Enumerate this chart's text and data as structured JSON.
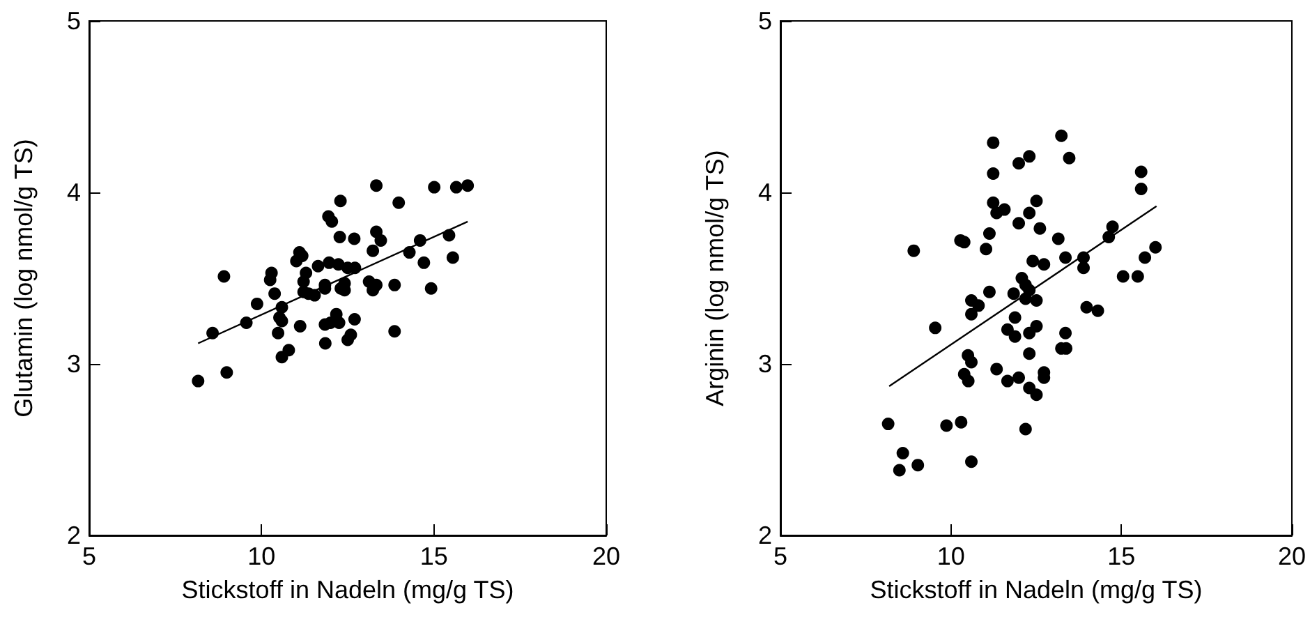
{
  "chart_data": [
    {
      "type": "scatter",
      "xlabel": "Stickstoff in Nadeln (mg/g TS)",
      "ylabel": "Glutamin (log nmol/g TS)",
      "xlim": [
        5,
        20
      ],
      "xticks": [
        5,
        10,
        15,
        20
      ],
      "ylim": [
        2,
        5
      ],
      "yticks": [
        2,
        3,
        4,
        5
      ],
      "grid": false,
      "marker": "circle",
      "series": [
        {
          "type": "scatter",
          "color": "#000000",
          "x": [
            8.16,
            8.99,
            8.58,
            8.91,
            9.56,
            9.87,
            10.29,
            10.25,
            10.38,
            10.59,
            10.52,
            10.59,
            10.48,
            10.79,
            10.59,
            11.01,
            11.1,
            11.18,
            11.12,
            11.29,
            11.22,
            11.22,
            11.36,
            11.54,
            11.64,
            11.84,
            11.84,
            11.96,
            11.94,
            12.04,
            12.29,
            12.27,
            12.69,
            12.23,
            12.5,
            12.71,
            12.41,
            12.3,
            12.41,
            11.84,
            12.0,
            12.17,
            12.25,
            12.7,
            11.85,
            12.5,
            12.59,
            13.33,
            13.33,
            13.46,
            13.23,
            13.12,
            13.33,
            13.23,
            13.86,
            13.86,
            13.98,
            14.29,
            14.6,
            14.71,
            14.92,
            15.01,
            15.44,
            15.55,
            15.65,
            15.98
          ],
          "values": [
            2.9,
            2.95,
            3.18,
            3.51,
            3.24,
            3.35,
            3.53,
            3.49,
            3.41,
            3.33,
            3.27,
            3.25,
            3.18,
            3.08,
            3.04,
            3.6,
            3.65,
            3.63,
            3.22,
            3.53,
            3.48,
            3.42,
            3.41,
            3.4,
            3.57,
            3.46,
            3.44,
            3.59,
            3.86,
            3.83,
            3.95,
            3.74,
            3.73,
            3.58,
            3.56,
            3.56,
            3.47,
            3.44,
            3.43,
            3.23,
            3.24,
            3.29,
            3.24,
            3.26,
            3.12,
            3.14,
            3.17,
            4.04,
            3.77,
            3.72,
            3.66,
            3.48,
            3.46,
            3.43,
            3.46,
            3.19,
            3.94,
            3.65,
            3.72,
            3.59,
            3.44,
            4.03,
            3.75,
            3.62,
            4.03,
            4.04
          ]
        },
        {
          "type": "line",
          "color": "#000000",
          "marker": "none",
          "x": [
            8.16,
            15.98
          ],
          "values": [
            3.12,
            3.83
          ]
        }
      ]
    },
    {
      "type": "scatter",
      "xlabel": "Stickstoff in Nadeln (mg/g TS)",
      "ylabel": "Arginin (log nmol/g TS)",
      "xlim": [
        5,
        20
      ],
      "xticks": [
        5,
        10,
        15,
        20
      ],
      "ylim": [
        2,
        5
      ],
      "yticks": [
        2,
        3,
        4,
        5
      ],
      "grid": false,
      "marker": "circle",
      "series": [
        {
          "type": "scatter",
          "color": "#000000",
          "x": [
            8.16,
            8.59,
            8.49,
            9.03,
            8.91,
            9.54,
            9.87,
            10.3,
            10.6,
            10.28,
            10.39,
            10.5,
            10.6,
            10.39,
            10.51,
            10.6,
            10.81,
            10.6,
            11.03,
            11.13,
            11.13,
            11.24,
            11.24,
            11.24,
            11.34,
            11.57,
            11.34,
            11.66,
            11.66,
            11.88,
            11.88,
            11.84,
            11.99,
            12.3,
            11.99,
            12.3,
            12.51,
            12.61,
            12.08,
            12.19,
            12.3,
            12.19,
            12.51,
            12.4,
            12.73,
            12.51,
            12.3,
            12.3,
            11.99,
            12.3,
            12.51,
            12.73,
            12.73,
            12.19,
            13.24,
            13.47,
            13.15,
            13.36,
            13.36,
            13.24,
            13.38,
            13.89,
            13.89,
            13.98,
            14.31,
            14.74,
            14.63,
            15.05,
            15.48,
            15.69,
            16.0,
            15.58,
            15.58
          ],
          "values": [
            2.65,
            2.48,
            2.38,
            2.41,
            3.66,
            3.21,
            2.64,
            2.66,
            2.43,
            3.72,
            3.71,
            3.05,
            3.01,
            2.94,
            2.9,
            3.37,
            3.34,
            3.29,
            3.67,
            3.76,
            3.42,
            4.29,
            4.11,
            3.94,
            3.88,
            3.9,
            2.97,
            2.9,
            3.2,
            3.27,
            3.16,
            3.41,
            4.17,
            4.21,
            3.82,
            3.88,
            3.95,
            3.79,
            3.5,
            3.46,
            3.43,
            3.38,
            3.37,
            3.6,
            3.58,
            3.22,
            3.18,
            3.06,
            2.92,
            2.86,
            2.82,
            2.95,
            2.92,
            2.62,
            4.33,
            4.2,
            3.73,
            3.62,
            3.18,
            3.09,
            3.09,
            3.62,
            3.56,
            3.33,
            3.31,
            3.8,
            3.74,
            3.51,
            3.51,
            3.62,
            3.68,
            4.12,
            4.02
          ]
        },
        {
          "type": "line",
          "color": "#000000",
          "marker": "none",
          "x": [
            8.19,
            16.03
          ],
          "values": [
            2.87,
            3.92
          ]
        }
      ]
    }
  ]
}
